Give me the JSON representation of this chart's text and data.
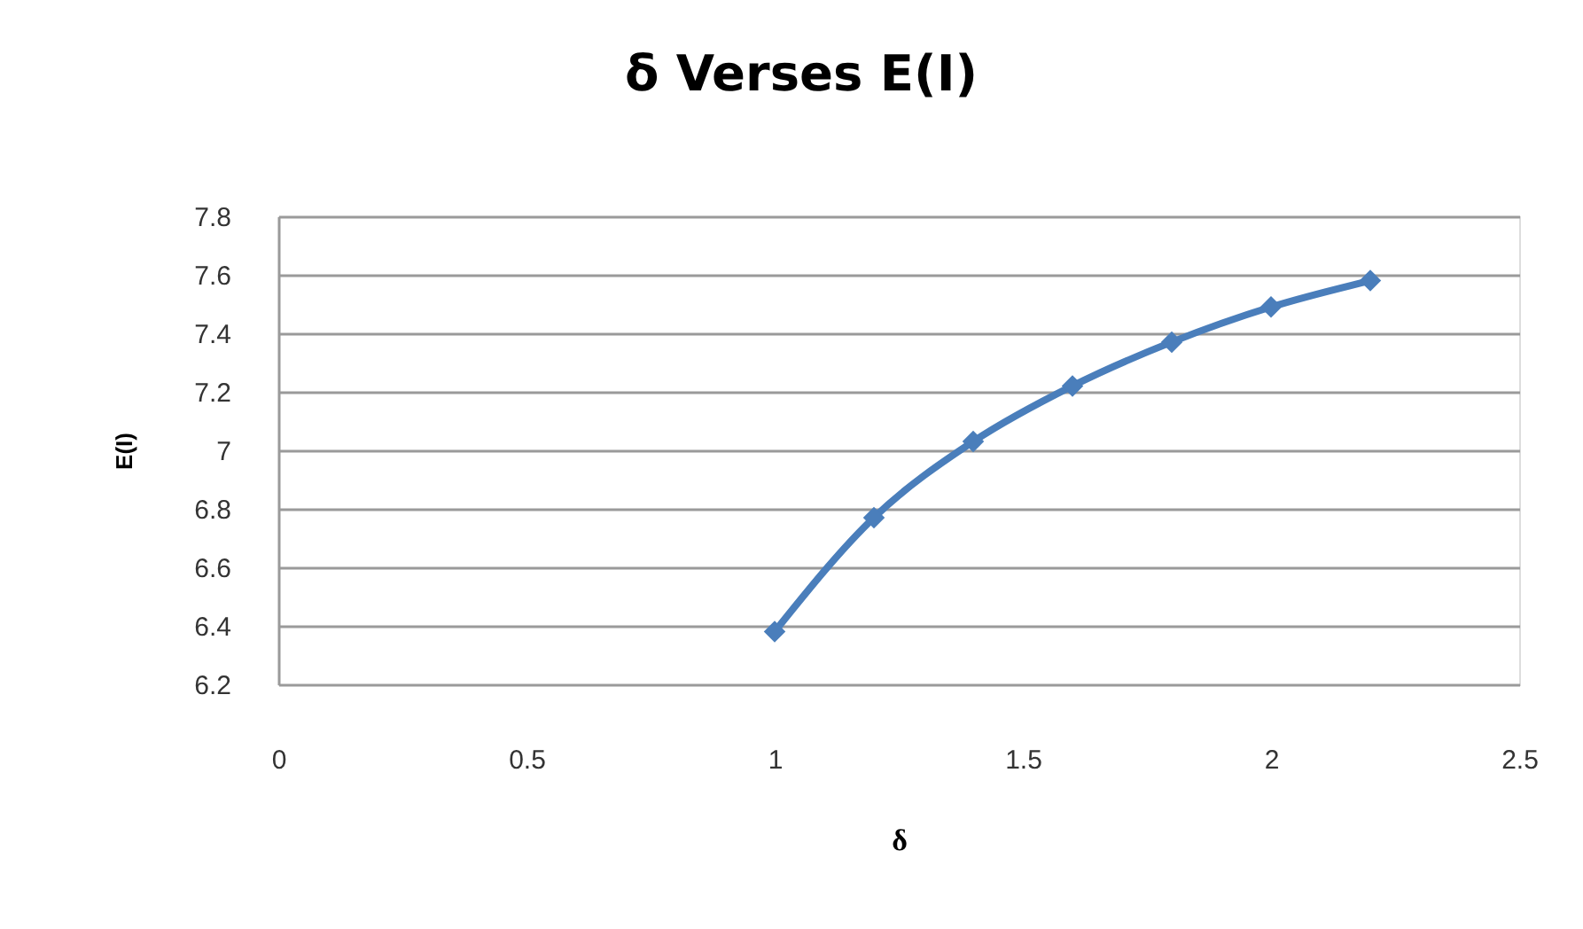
{
  "chart_data": {
    "type": "line",
    "title": "δ Verses E(I)",
    "xlabel": "δ",
    "ylabel": "E(I)",
    "x": [
      1,
      1.2,
      1.4,
      1.6,
      1.8,
      2,
      2.2
    ],
    "series": [
      {
        "color": "#4a7ebb",
        "values": [
          6.38,
          6.77,
          7.03,
          7.22,
          7.37,
          7.49,
          7.58
        ]
      }
    ],
    "xlim": [
      0,
      2.5
    ],
    "xticks": [
      0,
      0.5,
      1,
      1.5,
      2,
      2.5
    ],
    "ylim": [
      6.2,
      7.8
    ],
    "yticks": [
      6.2,
      6.4,
      6.6,
      6.8,
      7,
      7.2,
      7.4,
      7.6,
      7.8
    ],
    "grid": "y",
    "marker": "diamond",
    "line_style": "solid"
  }
}
